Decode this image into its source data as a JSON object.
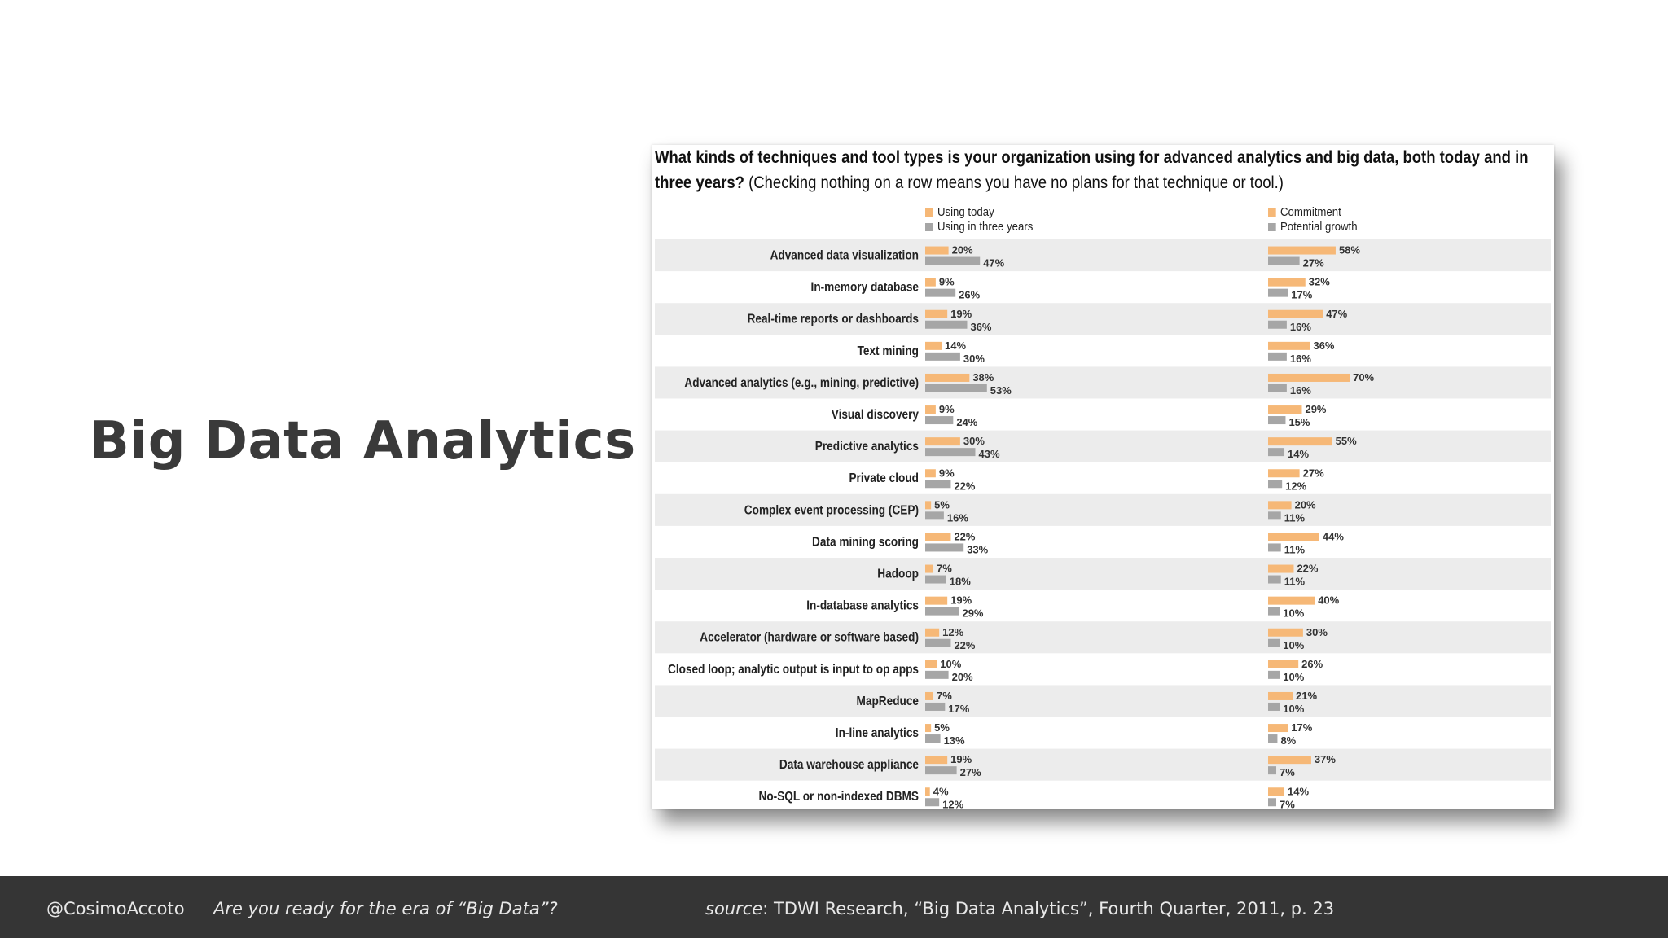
{
  "slide": {
    "title": "Big Data Analytics"
  },
  "footer": {
    "handle": "@CosimoAccoto",
    "talk_title": "Are you ready for the era of “Big Data”?",
    "source_label": "source",
    "source_text": ": TDWI Research, “Big Data Analytics”, Fourth Quarter,  2011, p. 23"
  },
  "colors": {
    "orange": "#f6b877",
    "gray": "#a6a6a6",
    "stripe": "#ececec"
  },
  "chart_data": {
    "type": "bar",
    "title_bold": "What kinds of techniques and tool types is your organization using for advanced analytics and big data, both today and in three years?",
    "title_rest": " (Checking nothing on a row means you have no plans for that technique or tool.)",
    "legend_left": [
      "Using today",
      "Using in three years"
    ],
    "legend_right": [
      "Commitment",
      "Potential growth"
    ],
    "categories": [
      "Advanced data visualization",
      "In-memory database",
      "Real-time reports or dashboards",
      "Text mining",
      "Advanced analytics (e.g., mining, predictive)",
      "Visual discovery",
      "Predictive analytics",
      "Private cloud",
      "Complex event processing (CEP)",
      "Data mining scoring",
      "Hadoop",
      "In-database analytics",
      "Accelerator (hardware or software based)",
      "Closed loop; analytic output is input to op apps",
      "MapReduce",
      "In-line analytics",
      "Data warehouse appliance",
      "No-SQL or non-indexed DBMS"
    ],
    "series": [
      {
        "name": "Using today",
        "group": "left",
        "values": [
          20,
          9,
          19,
          14,
          38,
          9,
          30,
          9,
          5,
          22,
          7,
          19,
          12,
          10,
          7,
          5,
          19,
          4
        ]
      },
      {
        "name": "Using in three years",
        "group": "left",
        "values": [
          47,
          26,
          36,
          30,
          53,
          24,
          43,
          22,
          16,
          33,
          18,
          29,
          22,
          20,
          17,
          13,
          27,
          12
        ]
      },
      {
        "name": "Commitment",
        "group": "right",
        "values": [
          58,
          32,
          47,
          36,
          70,
          29,
          55,
          27,
          20,
          44,
          22,
          40,
          30,
          26,
          21,
          17,
          37,
          14
        ]
      },
      {
        "name": "Potential growth",
        "group": "right",
        "values": [
          27,
          17,
          16,
          16,
          16,
          15,
          14,
          12,
          11,
          11,
          11,
          10,
          10,
          10,
          10,
          8,
          7,
          7
        ]
      }
    ],
    "value_suffix": "%",
    "grid": false
  }
}
